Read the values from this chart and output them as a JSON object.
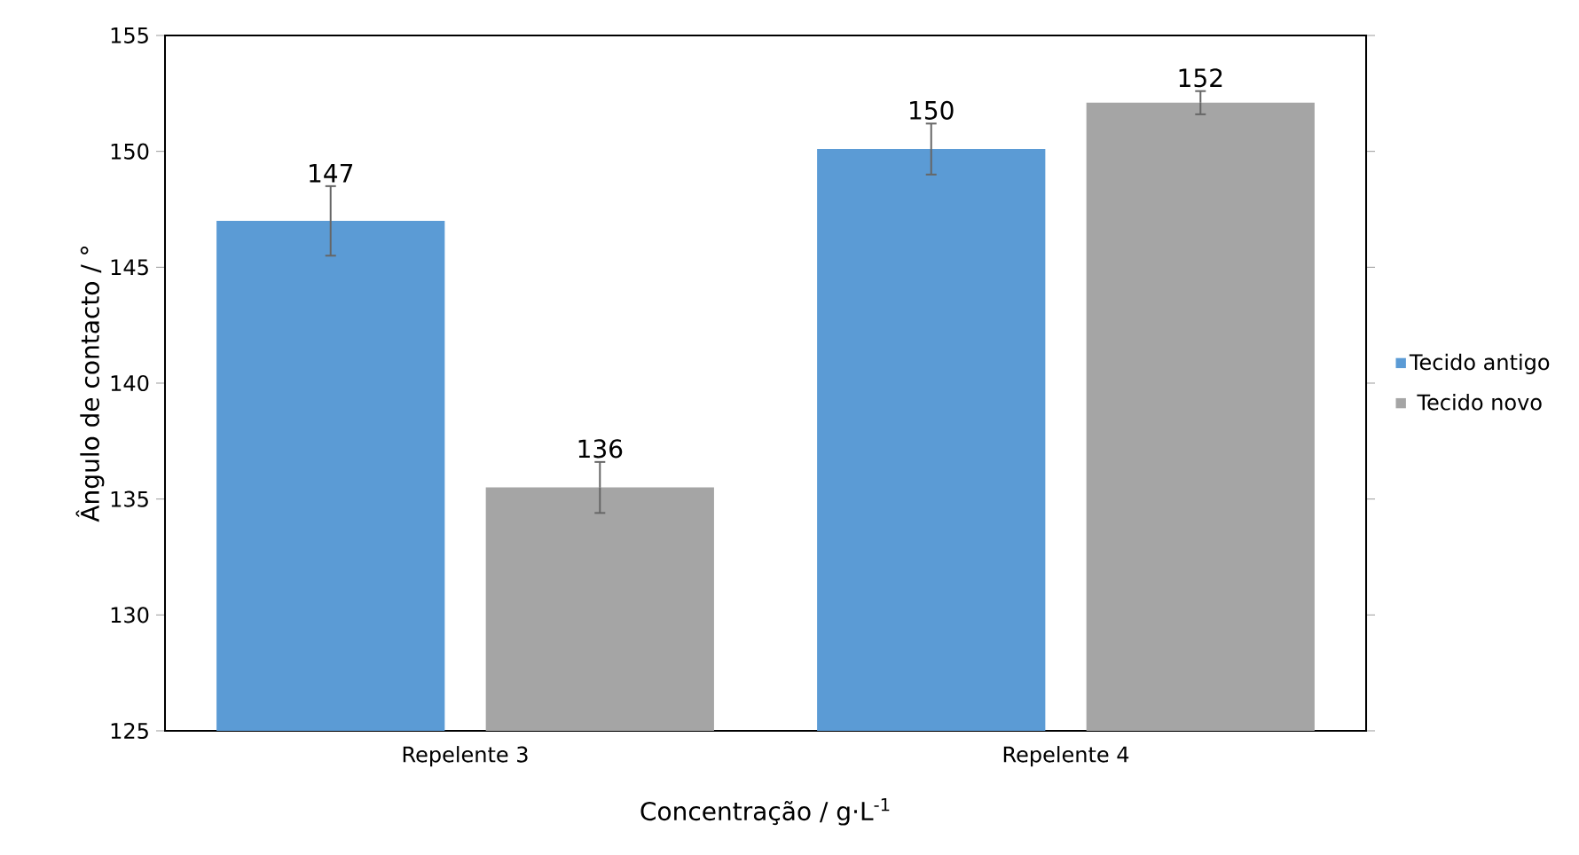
{
  "chart_data": {
    "type": "bar",
    "categories": [
      "Repelente 3",
      "Repelente 4"
    ],
    "series": [
      {
        "name": "Tecido antigo",
        "color": "#5b9bd5",
        "values": [
          147.0,
          150.1
        ],
        "errors": [
          1.5,
          1.1
        ],
        "value_labels": [
          "147",
          "150"
        ]
      },
      {
        "name": "Tecido novo",
        "color": "#a5a5a5",
        "values": [
          135.5,
          152.1
        ],
        "errors": [
          1.1,
          0.5
        ],
        "value_labels": [
          "136",
          "152"
        ]
      }
    ],
    "xlabel": "Concentração / g·L$^{-1}$",
    "ylabel": "Ângulo de contacto / °",
    "ylim": [
      125,
      155
    ],
    "yticks": [
      125,
      130,
      135,
      140,
      145,
      150,
      155
    ],
    "grid": false,
    "legend": "right"
  }
}
